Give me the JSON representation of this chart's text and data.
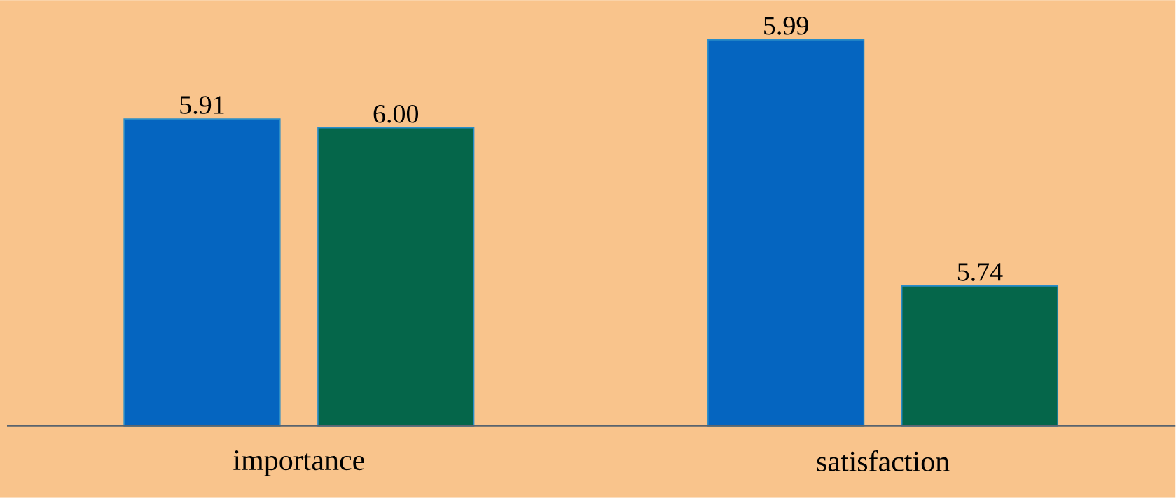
{
  "chart_data": {
    "type": "bar",
    "categories": [
      "importance",
      "satisfaction"
    ],
    "series": [
      {
        "color": "#0565c0",
        "values": [
          5.91,
          5.99
        ],
        "value_labels": [
          "5.91",
          "5.99"
        ]
      },
      {
        "color": "#05664a",
        "values": [
          6.0,
          5.74
        ],
        "value_labels": [
          "6.00",
          "5.74"
        ],
        "axis": "y2"
      }
    ],
    "ylim": [
      5.6,
      6.03
    ],
    "y2lim": [
      5.51,
      6.21
    ],
    "tick_labels": "x"
  }
}
